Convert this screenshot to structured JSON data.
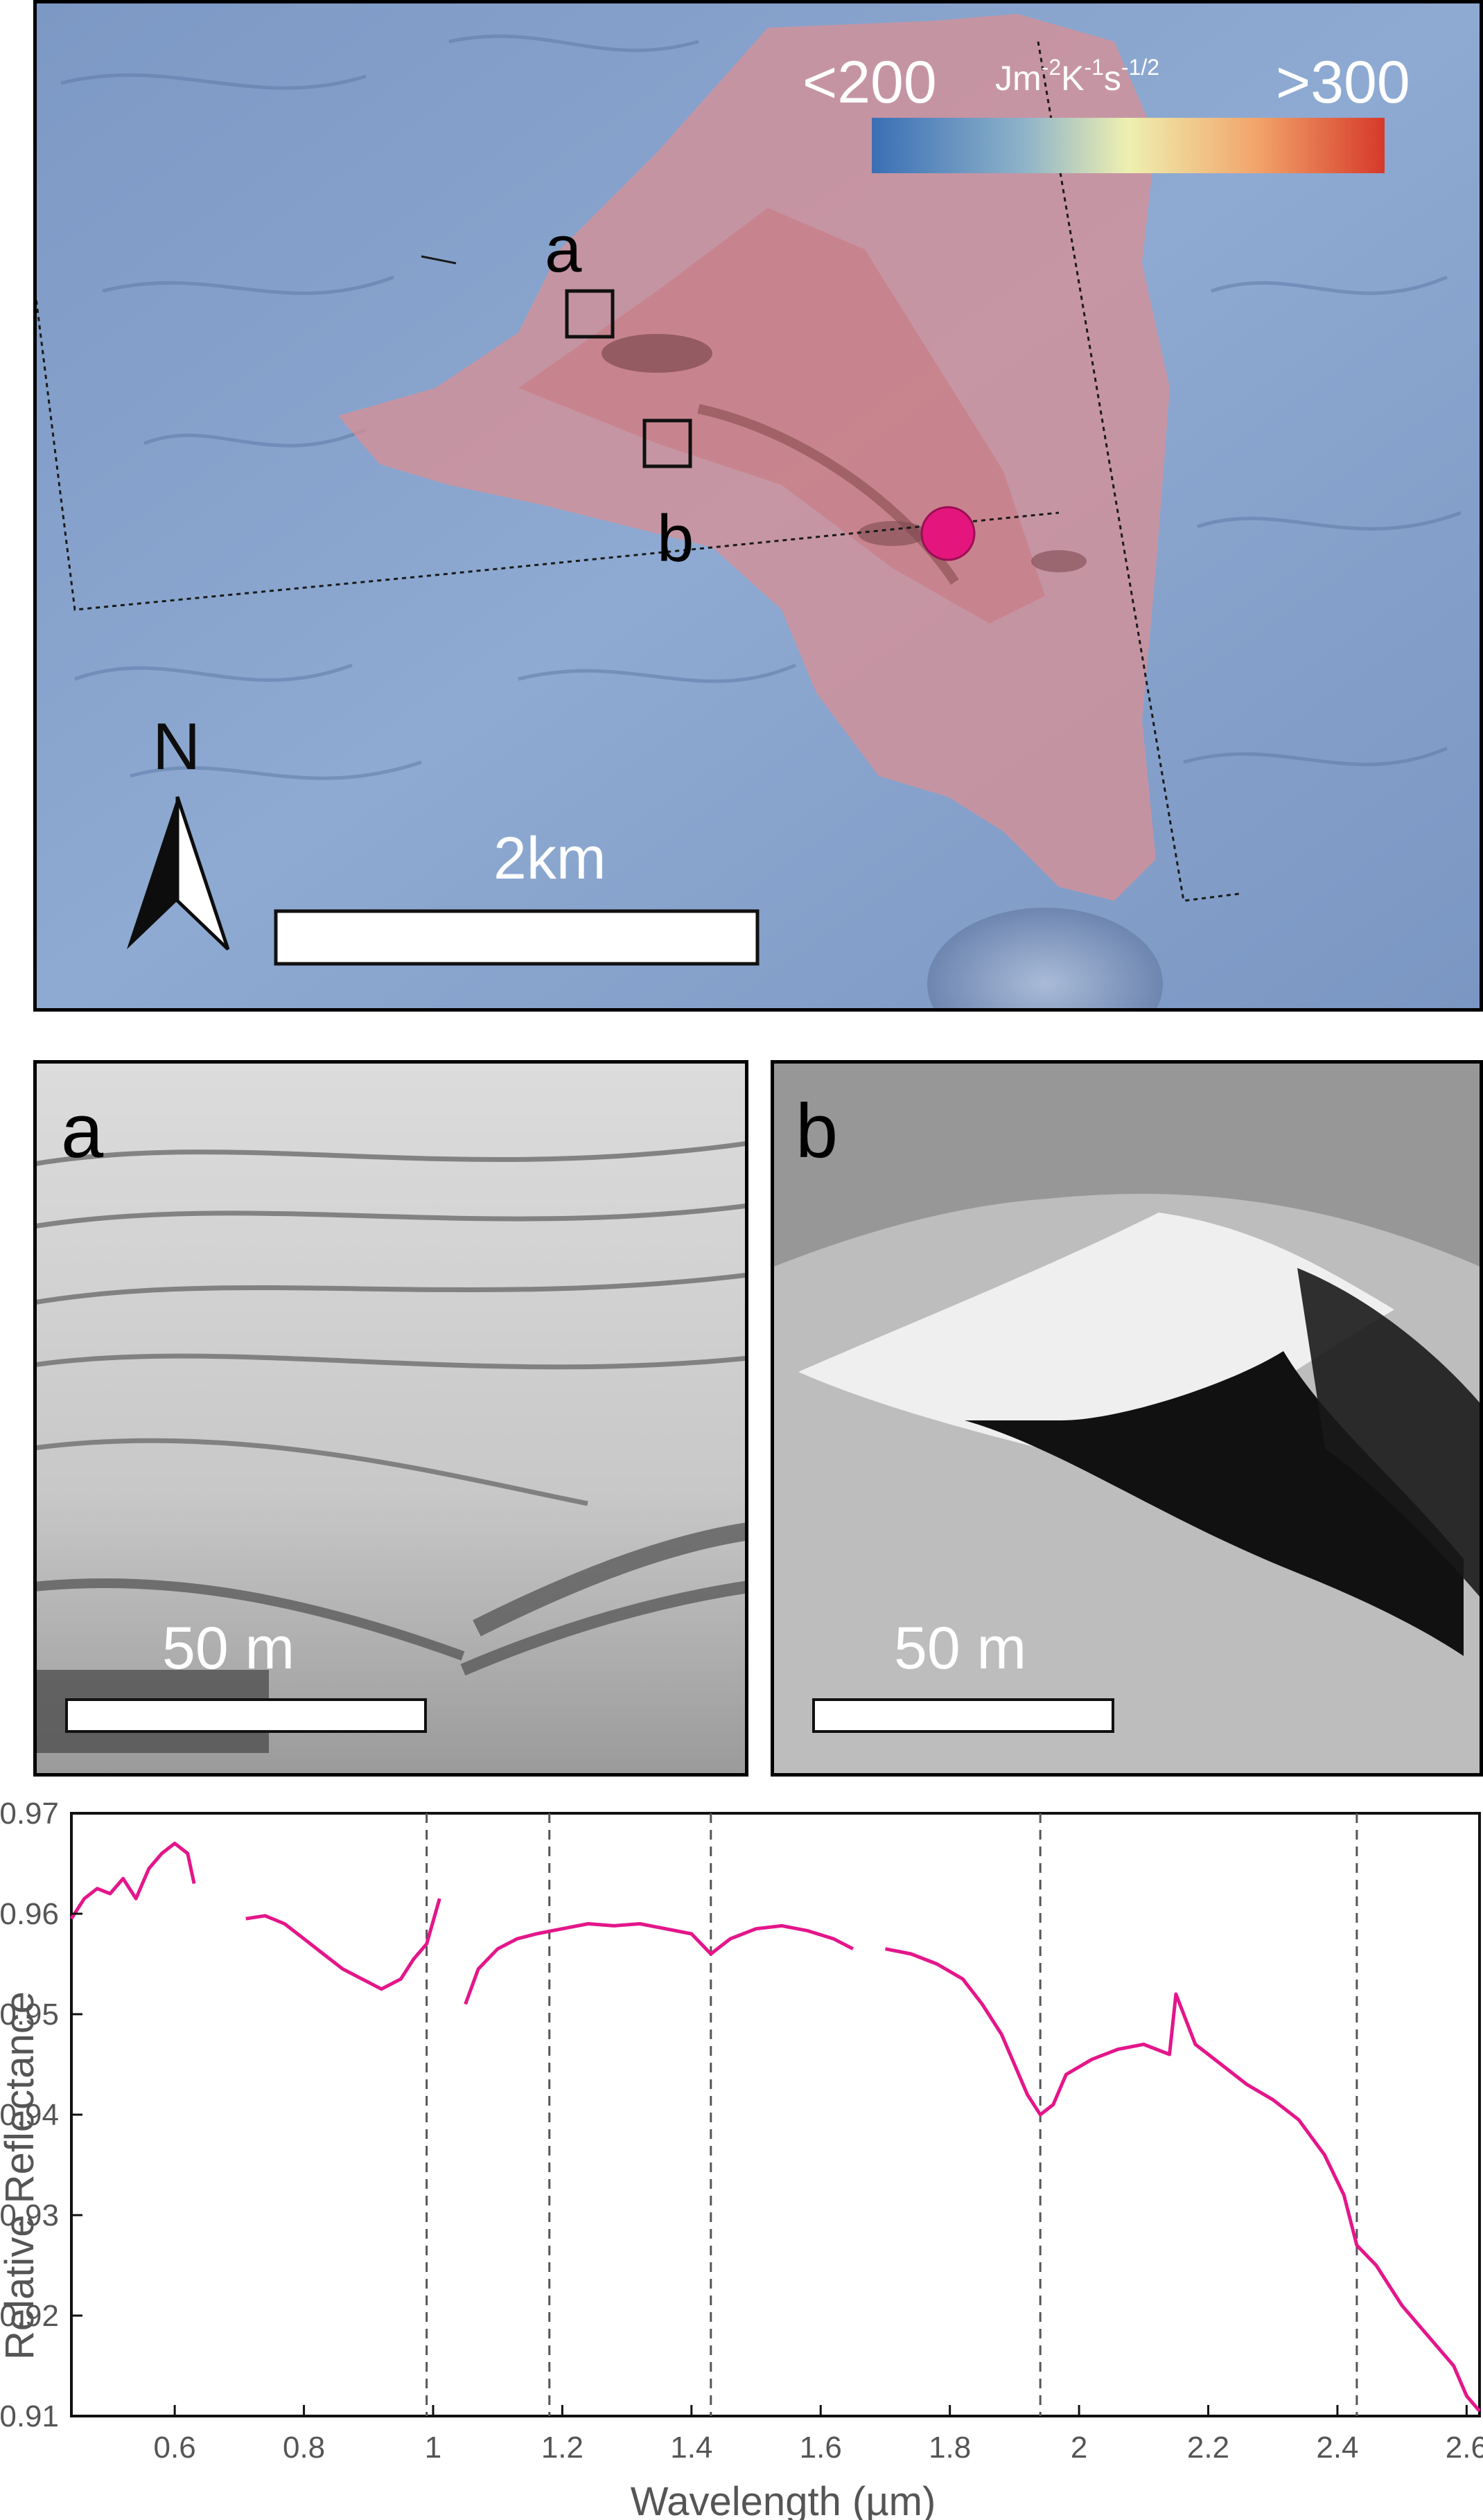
{
  "map_panel": {
    "colorbar": {
      "min_label": "<200",
      "unit_base": "Jm",
      "unit_exp1": "-2",
      "unit_k": "K",
      "unit_exp2": "-1",
      "unit_s": "s",
      "unit_exp3": "-1/2",
      "max_label": ">300",
      "colors": [
        "#3a6fb5",
        "#8fb3c9",
        "#eef0b0",
        "#f2a46a",
        "#d6392a"
      ]
    },
    "box_a_label": "a",
    "box_b_label": "b",
    "north_label": "N",
    "scale_label": "2km",
    "spectrum_location_color": "#e4167d"
  },
  "detail_a": {
    "label": "a",
    "scale_label": "50 m"
  },
  "detail_b": {
    "label": "b",
    "scale_label": "50 m"
  },
  "chart_data": {
    "type": "line",
    "xlabel": "Wavelength (µm)",
    "ylabel": "Relative Reflectance",
    "xlim": [
      0.44,
      2.62
    ],
    "ylim": [
      0.91,
      0.97
    ],
    "x_ticks": [
      "0.6",
      "0.8",
      "1",
      "1.2",
      "1.4",
      "1.6",
      "1.8",
      "2",
      "2.2",
      "2.4",
      "2.6"
    ],
    "x_tick_values": [
      0.6,
      0.8,
      1.0,
      1.2,
      1.4,
      1.6,
      1.8,
      2.0,
      2.2,
      2.4,
      2.6
    ],
    "y_ticks": [
      "0.91",
      "0.92",
      "0.93",
      "0.94",
      "0.95",
      "0.96",
      "0.97"
    ],
    "y_tick_values": [
      0.91,
      0.92,
      0.93,
      0.94,
      0.95,
      0.96,
      0.97
    ],
    "reference_lines": [
      0.99,
      1.18,
      1.43,
      1.94,
      2.43
    ],
    "line_color": "#e4168a",
    "series": [
      {
        "x": [
          0.44,
          0.46,
          0.48,
          0.5,
          0.52,
          0.54,
          0.56,
          0.58,
          0.6,
          0.62,
          0.63
        ],
        "y": [
          0.9595,
          0.9615,
          0.9625,
          0.962,
          0.9635,
          0.9615,
          0.9645,
          0.966,
          0.967,
          0.966,
          0.963
        ]
      },
      {
        "x": [
          0.71,
          0.74,
          0.77,
          0.8,
          0.83,
          0.86,
          0.89,
          0.92,
          0.95,
          0.97,
          0.99,
          1.01
        ],
        "y": [
          0.9595,
          0.9598,
          0.959,
          0.9575,
          0.956,
          0.9545,
          0.9535,
          0.9525,
          0.9535,
          0.9555,
          0.957,
          0.9615
        ]
      },
      {
        "x": [
          1.05,
          1.07,
          1.1,
          1.13,
          1.16,
          1.2,
          1.24,
          1.28,
          1.32,
          1.36,
          1.4,
          1.43,
          1.46,
          1.5,
          1.54,
          1.58,
          1.62,
          1.65
        ],
        "y": [
          0.951,
          0.9545,
          0.9565,
          0.9575,
          0.958,
          0.9585,
          0.959,
          0.9588,
          0.959,
          0.9585,
          0.958,
          0.956,
          0.9575,
          0.9585,
          0.9588,
          0.9583,
          0.9575,
          0.9565
        ]
      },
      {
        "x": [
          1.7,
          1.74,
          1.78,
          1.82,
          1.85,
          1.88,
          1.9,
          1.92,
          1.94,
          1.96,
          1.98,
          2.02,
          2.06,
          2.1,
          2.14,
          2.15,
          2.18,
          2.22,
          2.26,
          2.3,
          2.34,
          2.38,
          2.41,
          2.43,
          2.46,
          2.5,
          2.54,
          2.58,
          2.6,
          2.62
        ],
        "y": [
          0.9565,
          0.956,
          0.955,
          0.9535,
          0.951,
          0.948,
          0.945,
          0.942,
          0.94,
          0.941,
          0.944,
          0.9455,
          0.9465,
          0.947,
          0.946,
          0.952,
          0.947,
          0.945,
          0.943,
          0.9415,
          0.9395,
          0.936,
          0.932,
          0.927,
          0.925,
          0.921,
          0.918,
          0.915,
          0.912,
          0.9105
        ]
      }
    ]
  }
}
